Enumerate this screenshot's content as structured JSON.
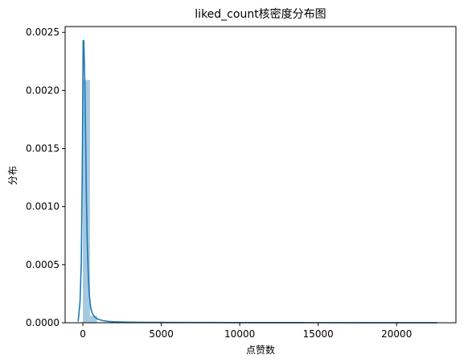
{
  "chart_data": {
    "type": "histogram+kde",
    "title": "liked_count核密度分布图",
    "xlabel": "点赞数",
    "ylabel": "分布",
    "xlim": [
      -1130,
      23780
    ],
    "ylim": [
      0,
      0.00255
    ],
    "xticks": [
      0,
      5000,
      10000,
      15000,
      20000
    ],
    "xtick_labels": [
      "0",
      "5000",
      "10000",
      "15000",
      "20000"
    ],
    "yticks": [
      0,
      0.0005,
      0.001,
      0.0015,
      0.002,
      0.0025
    ],
    "ytick_labels": [
      "0.0000",
      "0.0005",
      "0.0010",
      "0.0015",
      "0.0020",
      "0.0025"
    ],
    "grid": false,
    "histogram": {
      "color": "#1f77b4",
      "bin_edges": [
        0,
        450,
        900
      ],
      "densities": [
        0.00209,
        6e-05
      ]
    },
    "kde": {
      "color": "#1f77b4",
      "x": [
        -300,
        -180,
        -100,
        -40,
        0,
        20,
        60,
        120,
        180,
        230,
        280,
        350,
        420,
        500,
        600,
        750,
        900,
        1100,
        1300,
        1600,
        2000,
        2600,
        3500,
        5000,
        7000,
        10000,
        14000,
        18000,
        22600
      ],
      "y": [
        1e-05,
        0.00018,
        0.00052,
        0.00125,
        0.00205,
        0.00243,
        0.00243,
        0.0021,
        0.00155,
        0.00105,
        0.0007,
        0.0004,
        0.00023,
        0.00013,
        8e-05,
        5e-05,
        3.5e-05,
        2.5e-05,
        1.8e-05,
        1.2e-05,
        8e-06,
        6e-06,
        4e-06,
        3e-06,
        2e-06,
        1.5e-06,
        1e-06,
        5e-07,
        3e-07
      ]
    }
  }
}
